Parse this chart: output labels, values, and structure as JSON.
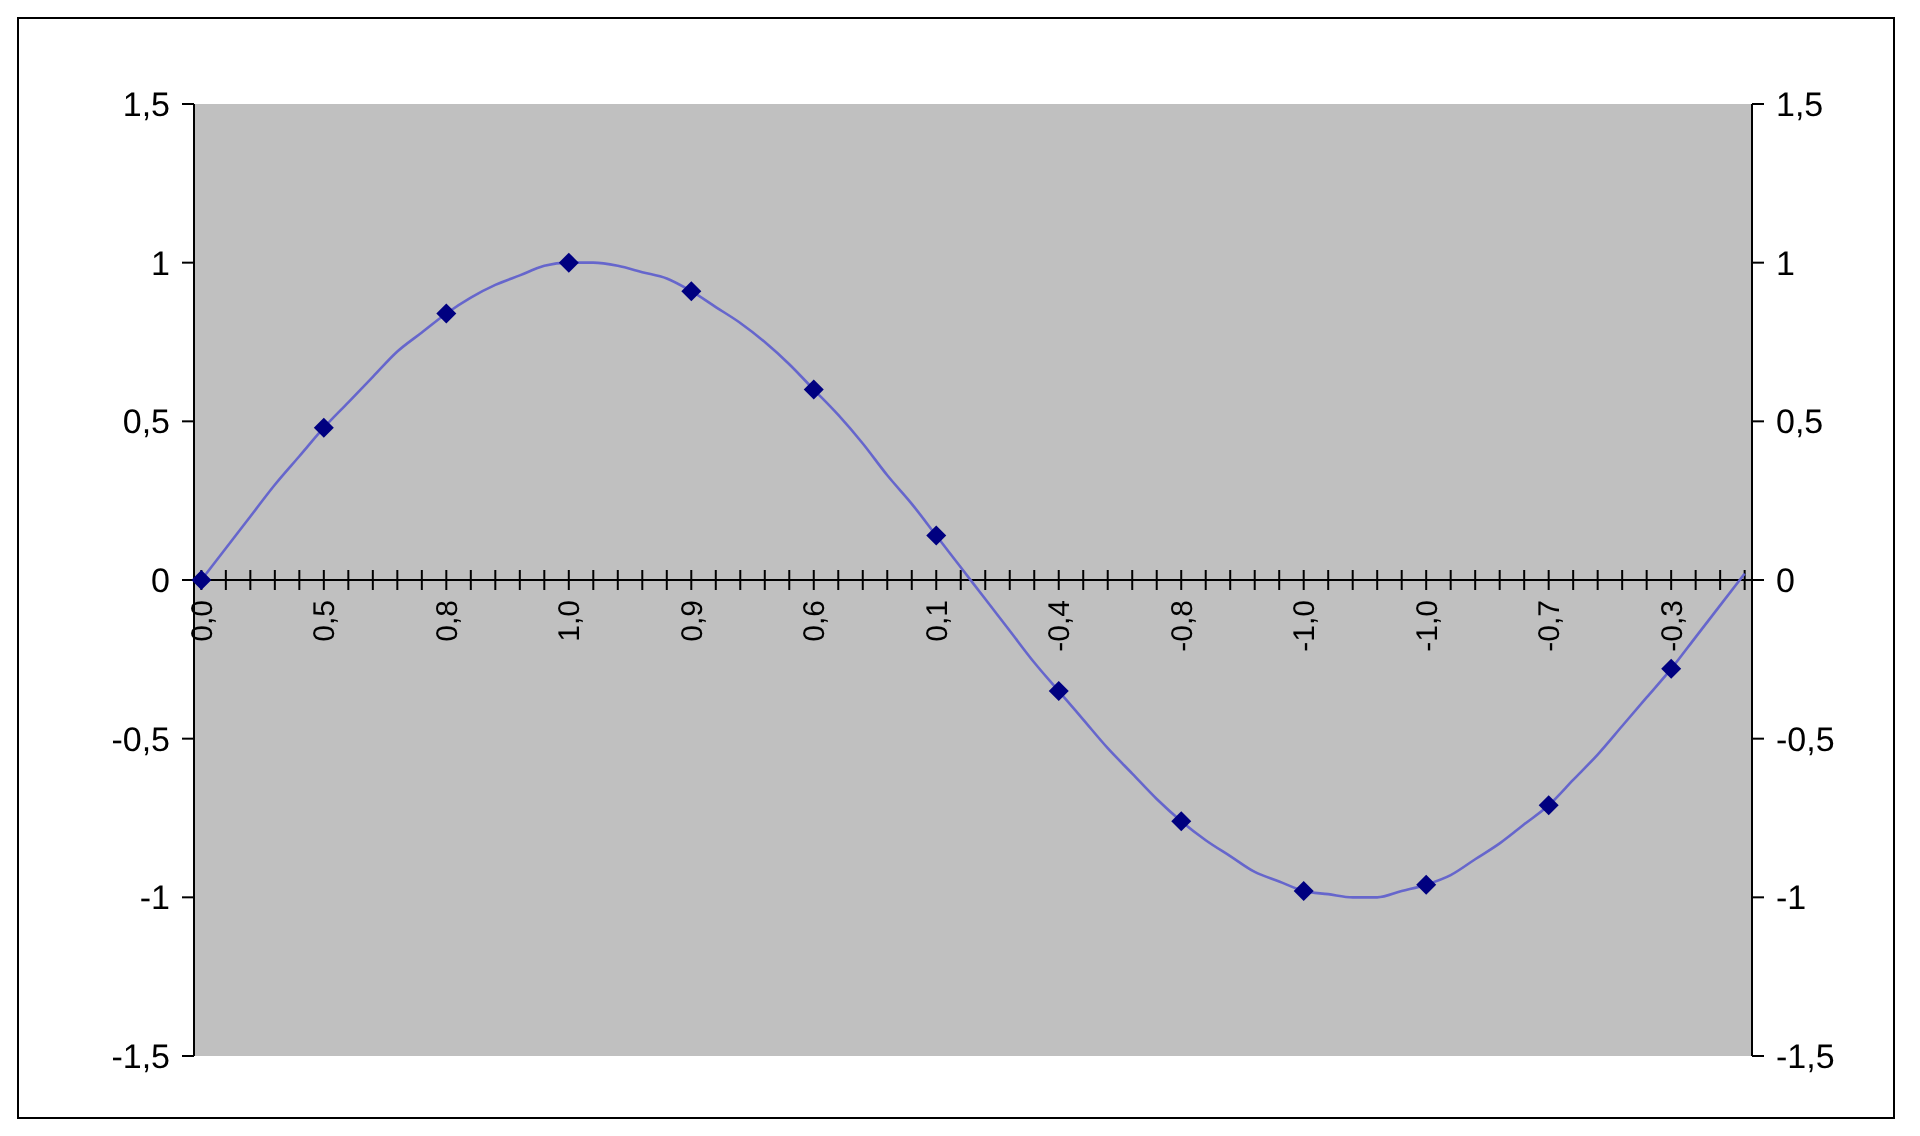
{
  "chart_data": {
    "type": "line",
    "categories": [
      "0,0",
      null,
      null,
      null,
      null,
      "0,5",
      null,
      null,
      null,
      null,
      "0,8",
      null,
      null,
      null,
      null,
      "1,0",
      null,
      null,
      null,
      null,
      "0,9",
      null,
      null,
      null,
      null,
      "0,6",
      null,
      null,
      null,
      null,
      "0,1",
      null,
      null,
      null,
      null,
      "-0,4",
      null,
      null,
      null,
      null,
      "-0,8",
      null,
      null,
      null,
      null,
      "-1,0",
      null,
      null,
      null,
      null,
      "-1,0",
      null,
      null,
      null,
      null,
      "-0,7",
      null,
      null,
      null,
      null,
      "-0,3",
      null,
      null,
      null
    ],
    "series": [
      {
        "color": "#6666cc",
        "marker": "none",
        "values": [
          0,
          0.1,
          0.2,
          0.3,
          0.39,
          0.48,
          0.56,
          0.64,
          0.72,
          0.78,
          0.84,
          0.89,
          0.93,
          0.96,
          0.99,
          1.0,
          1.0,
          0.99,
          0.97,
          0.95,
          0.91,
          0.86,
          0.81,
          0.75,
          0.68,
          0.6,
          0.52,
          0.43,
          0.33,
          0.24,
          0.14,
          0.04,
          -0.06,
          -0.16,
          -0.26,
          -0.35,
          -0.44,
          -0.53,
          -0.61,
          -0.69,
          -0.76,
          -0.82,
          -0.87,
          -0.92,
          -0.95,
          -0.98,
          -0.99,
          -1.0,
          -1.0,
          -0.98,
          -0.96,
          -0.93,
          -0.88,
          -0.83,
          -0.77,
          -0.71,
          -0.63,
          -0.55,
          -0.46,
          -0.37,
          -0.28,
          -0.18,
          -0.08,
          0.02
        ]
      },
      {
        "type": "scatter",
        "color": "#000080",
        "marker": "diamond",
        "values": [
          0,
          null,
          null,
          null,
          null,
          0.48,
          null,
          null,
          null,
          null,
          0.84,
          null,
          null,
          null,
          null,
          1.0,
          null,
          null,
          null,
          null,
          0.91,
          null,
          null,
          null,
          null,
          0.6,
          null,
          null,
          null,
          null,
          0.14,
          null,
          null,
          null,
          null,
          -0.35,
          null,
          null,
          null,
          null,
          -0.76,
          null,
          null,
          null,
          null,
          -0.98,
          null,
          null,
          null,
          null,
          -0.96,
          null,
          null,
          null,
          null,
          -0.71,
          null,
          null,
          null,
          null,
          -0.28,
          null,
          null,
          null
        ]
      }
    ],
    "ylim": [
      -1.5,
      1.5
    ],
    "yticks": [
      {
        "value": -1.5,
        "label": "-1,5"
      },
      -1,
      {
        "value": -0.5,
        "label": "-0,5"
      },
      0,
      {
        "value": 0.5,
        "label": "0,5"
      },
      1,
      {
        "value": 1.5,
        "label": "1,5"
      }
    ],
    "y2lim": [
      -1.5,
      1.5
    ],
    "y2ticks": [
      {
        "value": -1.5,
        "label": "-1,5"
      },
      -1,
      {
        "value": -0.5,
        "label": "-0,5"
      },
      0,
      {
        "value": 0.5,
        "label": "0,5"
      },
      1,
      {
        "value": 1.5,
        "label": "1,5"
      }
    ],
    "grid": false
  }
}
